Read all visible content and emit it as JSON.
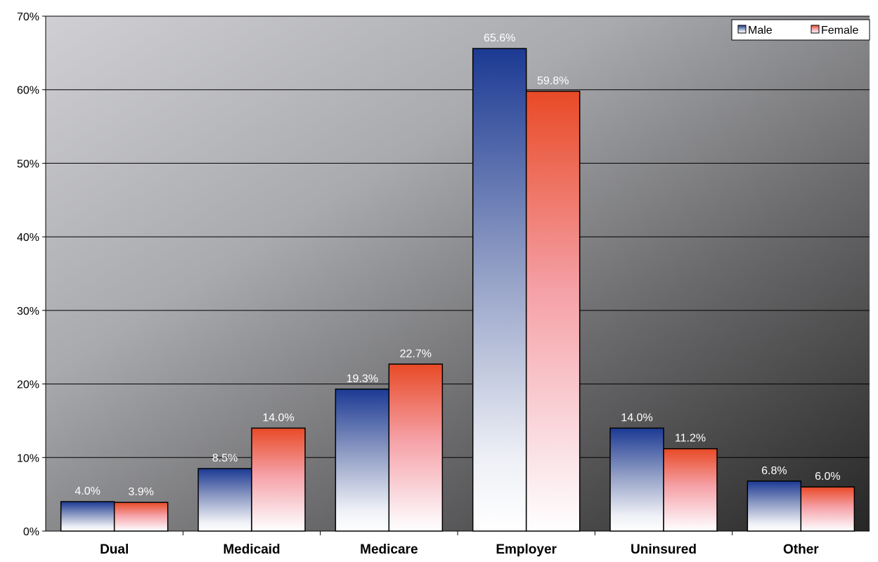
{
  "chart_data": {
    "type": "bar",
    "title": "",
    "xlabel": "",
    "ylabel": "",
    "ylim": [
      0,
      70
    ],
    "y_ticks": [
      "0%",
      "10%",
      "20%",
      "30%",
      "40%",
      "50%",
      "60%",
      "70%"
    ],
    "categories": [
      "Dual",
      "Medicaid",
      "Medicare",
      "Employer",
      "Uninsured",
      "Other"
    ],
    "series": [
      {
        "name": "Male",
        "values": [
          4.0,
          8.5,
          19.3,
          65.6,
          14.0,
          6.8
        ],
        "labels": [
          "4.0%",
          "8.5%",
          "19.3%",
          "65.6%",
          "14.0%",
          "6.8%"
        ],
        "color": "#1c3a94"
      },
      {
        "name": "Female",
        "values": [
          3.9,
          14.0,
          22.7,
          59.8,
          11.2,
          6.0
        ],
        "labels": [
          "3.9%",
          "14.0%",
          "22.7%",
          "59.8%",
          "11.2%",
          "6.0%"
        ],
        "color": "#e84a26"
      }
    ],
    "grid": true,
    "legend_position": "top-right",
    "background": "gradient light-gray to dark-gray"
  }
}
